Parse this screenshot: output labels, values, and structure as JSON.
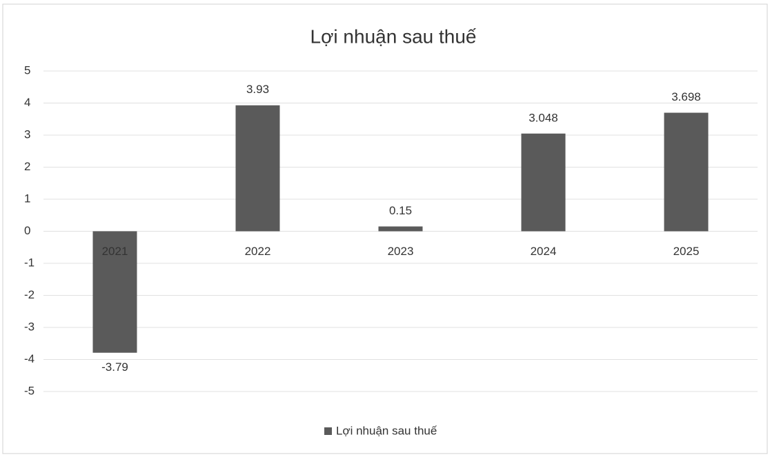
{
  "chart_data": {
    "type": "bar",
    "title": "Lợi nhuận sau thuế",
    "categories": [
      "2021",
      "2022",
      "2023",
      "2024",
      "2025"
    ],
    "series": [
      {
        "name": "Lợi nhuận sau thuế",
        "color": "#5a5a5a",
        "values": [
          -3.79,
          3.93,
          0.15,
          3.048,
          3.698
        ]
      }
    ],
    "ylim": [
      -5,
      5
    ],
    "yticks": [
      -5,
      -4,
      -3,
      -2,
      -1,
      0,
      1,
      2,
      3,
      4,
      5
    ],
    "grid": true,
    "legend": "bottom"
  }
}
